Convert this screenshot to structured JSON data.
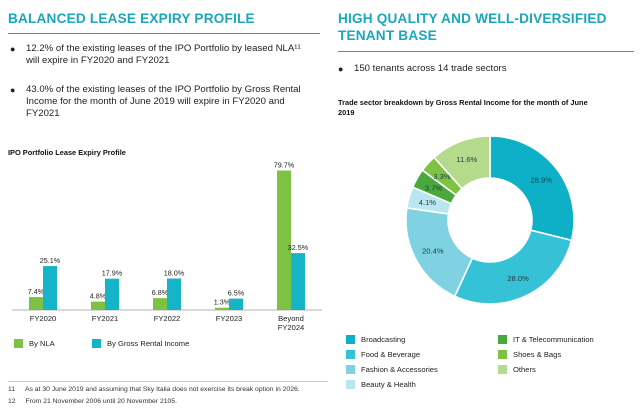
{
  "left": {
    "heading": "BALANCED LEASE EXPIRY PROFILE",
    "bullets": [
      "12.2% of the existing leases of the IPO Portfolio by leased NLA¹¹ will expire in FY2020 and FY2021",
      "43.0% of the existing leases of the IPO Portfolio by Gross Rental Income for the month of June 2019 will expire in FY2020 and FY2021"
    ]
  },
  "right": {
    "heading_line1": "HIGH QUALITY AND WELL-DIVERSIFIED",
    "heading_line2": "TENANT BASE",
    "bullets": [
      "150 tenants across 14 trade sectors"
    ]
  },
  "footnotes": [
    {
      "num": "11",
      "text": "As at 30 June 2019 and assuming that Sky Italia does not exercise its break option in 2026."
    },
    {
      "num": "12",
      "text": "From 21 November 2006 until 20 November 2105."
    }
  ],
  "colors": {
    "teal": "#1aa7b9",
    "green": "#7dc242",
    "nla": "#7dc242",
    "gri": "#16b4c8"
  },
  "chart_data": [
    {
      "type": "bar",
      "title": "IPO Portfolio Lease Expiry Profile",
      "categories": [
        "FY2020",
        "FY2021",
        "FY2022",
        "FY2023",
        "Beyond FY2024"
      ],
      "series": [
        {
          "name": "By NLA",
          "values": [
            7.4,
            4.8,
            6.8,
            1.3,
            79.7
          ],
          "labels": [
            "7.4%",
            "4.8%",
            "6.8%",
            "1.3%",
            "79.7%"
          ]
        },
        {
          "name": "By Gross Rental Income",
          "values": [
            25.1,
            17.9,
            18.0,
            6.5,
            32.5
          ],
          "labels": [
            "25.1%",
            "17.9%",
            "18.0%",
            "6.5%",
            "32.5%"
          ]
        }
      ],
      "ylim": [
        0,
        80
      ],
      "xlabel": "",
      "ylabel": ""
    },
    {
      "type": "pie",
      "donut": true,
      "title": "Trade sector breakdown by Gross Rental Income for the month of June 2019",
      "slices": [
        {
          "name": "Broadcasting",
          "value": 28.9,
          "label": "28.9%",
          "color": "#0db0c6"
        },
        {
          "name": "Food & Beverage",
          "value": 28.0,
          "label": "28.0%",
          "color": "#35c1d6"
        },
        {
          "name": "Fashion & Accessories",
          "value": 20.4,
          "label": "20.4%",
          "color": "#7ed2e2"
        },
        {
          "name": "Beauty & Health",
          "value": 4.1,
          "label": "4.1%",
          "color": "#b9e6ef"
        },
        {
          "name": "IT & Telecommunication",
          "value": 3.7,
          "label": "3.7%",
          "color": "#4aa93e"
        },
        {
          "name": "Shoes & Bags",
          "value": 3.3,
          "label": "3.3%",
          "color": "#7dc242"
        },
        {
          "name": "Others",
          "value": 11.6,
          "label": "11.6%",
          "color": "#b4db8c"
        }
      ],
      "legend_order": [
        "Broadcasting",
        "IT & Telecommunication",
        "Food & Beverage",
        "Shoes & Bags",
        "Fashion & Accessories",
        "Others",
        "Beauty & Health"
      ]
    }
  ]
}
